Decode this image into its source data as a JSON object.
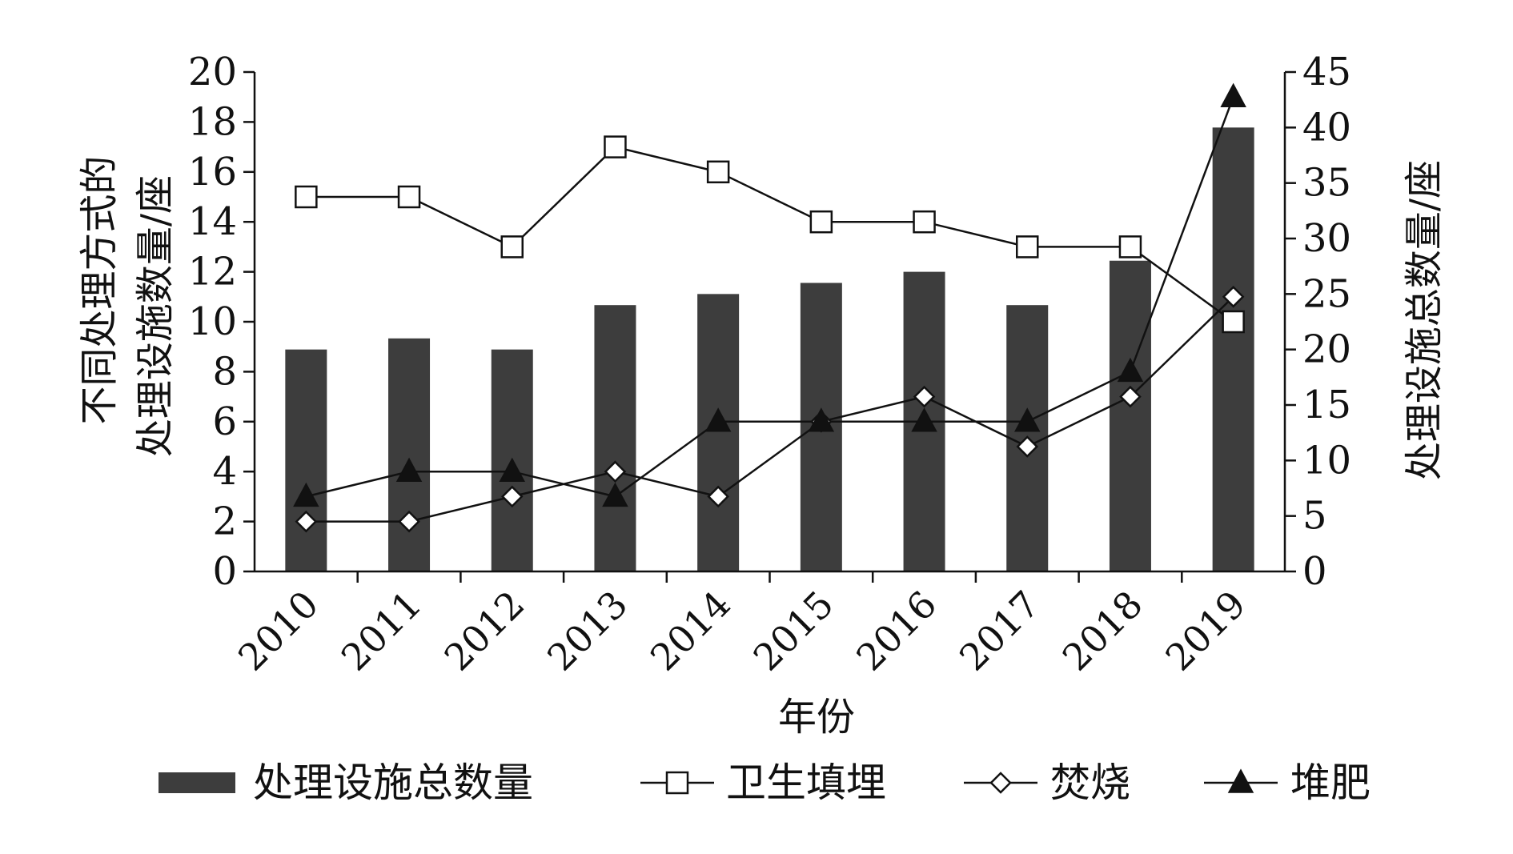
{
  "chart_data": {
    "type": "bar",
    "title": "",
    "categories": [
      "2010",
      "2011",
      "2012",
      "2013",
      "2014",
      "2015",
      "2016",
      "2017",
      "2018",
      "2019"
    ],
    "xlabel": "年份",
    "ylabel_left": "不同处理方式的处理设施数量/座",
    "ylabel_left_lines": [
      "不同处理方式的",
      "处理设施数量/座"
    ],
    "ylabel_right": "处理设施总数量/座",
    "y_left": {
      "min": 0,
      "max": 20,
      "ticks": [
        0,
        2,
        4,
        6,
        8,
        10,
        12,
        14,
        16,
        18,
        20
      ]
    },
    "y_right": {
      "min": 0,
      "max": 45,
      "ticks": [
        0,
        5,
        10,
        15,
        20,
        25,
        30,
        35,
        40,
        45
      ]
    },
    "grid": false,
    "legend_position": "bottom",
    "series": [
      {
        "name": "处理设施总数量",
        "kind": "bar",
        "axis": "right",
        "color": "#3d3d3d",
        "values": [
          20,
          21,
          20,
          24,
          25,
          26,
          27,
          24,
          28,
          40
        ]
      },
      {
        "name": "卫生填埋",
        "kind": "line",
        "axis": "left",
        "marker": "square",
        "values": [
          15,
          15,
          13,
          17,
          16,
          14,
          14,
          13,
          13,
          10
        ]
      },
      {
        "name": "焚烧",
        "kind": "line",
        "axis": "left",
        "marker": "diamond",
        "values": [
          2,
          2,
          3,
          4,
          3,
          6,
          7,
          5,
          7,
          11
        ]
      },
      {
        "name": "堆肥",
        "kind": "line",
        "axis": "left",
        "marker": "triangle",
        "values": [
          3,
          4,
          4,
          3,
          6,
          6,
          6,
          6,
          8,
          19
        ]
      }
    ]
  }
}
